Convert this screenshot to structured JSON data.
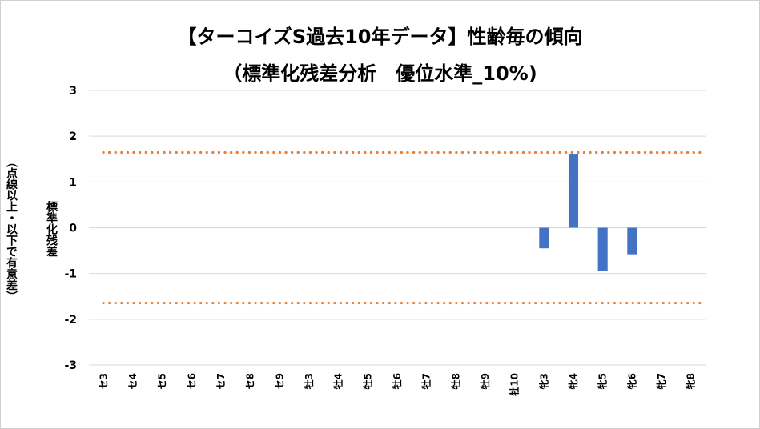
{
  "chart_data": {
    "type": "bar",
    "title": "【ターコイズS過去10年データ】性齢毎の傾向",
    "subtitle": "（標準化残差分析　優位水準_10%)",
    "ylabel_main": "標準化残差",
    "ylabel_note": "（点線以上・以下で有意差）",
    "ylim": [
      -3,
      3
    ],
    "yticks": [
      "3",
      "2",
      "1",
      "0",
      "-1",
      "-2",
      "-3"
    ],
    "categories": [
      "セ3",
      "セ4",
      "セ5",
      "セ6",
      "セ7",
      "セ8",
      "セ9",
      "牡3",
      "牡4",
      "牡5",
      "牡6",
      "牡7",
      "牡8",
      "牡9",
      "牡10",
      "牝3",
      "牝4",
      "牝5",
      "牝6",
      "牝7",
      "牝8"
    ],
    "values": [
      0,
      0,
      0,
      0,
      0,
      0,
      0,
      0,
      0,
      0,
      0,
      0,
      0,
      0,
      0,
      -0.45,
      1.6,
      -0.95,
      -0.58,
      0,
      0
    ],
    "reference_lines": [
      1.645,
      -1.645
    ],
    "bar_color": "#4472C4",
    "reference_color": "#ED7D31",
    "grid": true
  }
}
